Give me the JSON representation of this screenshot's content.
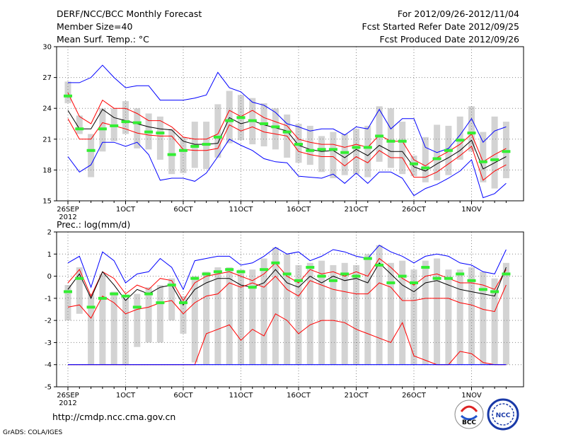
{
  "header": {
    "title": "DERF/NCC/BCC Monthly Forecast",
    "member_size": "Member Size=40",
    "variable1": "Mean Surf. Temp.: °C",
    "period": "For 2012/09/26-2012/11/04",
    "started": "Fcst Started Refer Date 2012/09/25",
    "produced": "Fcst Produced Date 2012/09/26"
  },
  "footer": {
    "url": "http://cmdp.ncc.cma.gov.cn",
    "credit": "GrADS: COLA/IGES",
    "logo_bcc": "BCC",
    "logo_ncc": "NCC"
  },
  "colors": {
    "max_min": "#0000ff",
    "percentile": "#ff0000",
    "mean": "#000000",
    "obs": "#33ee33",
    "box": "#d3d3d3",
    "grid": "#888888"
  },
  "chart_data": [
    {
      "type": "line",
      "title": "Mean Surf. Temp.: °C",
      "ylabel": "°C",
      "ylim": [
        15,
        30
      ],
      "yticks": [
        15,
        18,
        21,
        24,
        27,
        30
      ],
      "grid": true,
      "xtick_labels": [
        {
          "day": 0,
          "label": "26SEP",
          "sub": "2012"
        },
        {
          "day": 5,
          "label": "1OCT"
        },
        {
          "day": 10,
          "label": "6OCT"
        },
        {
          "day": 15,
          "label": "11OCT"
        },
        {
          "day": 20,
          "label": "16OCT"
        },
        {
          "day": 25,
          "label": "21OCT"
        },
        {
          "day": 30,
          "label": "26OCT"
        },
        {
          "day": 35,
          "label": "1NOV"
        }
      ],
      "days": [
        0,
        1,
        2,
        3,
        4,
        5,
        6,
        7,
        8,
        9,
        10,
        11,
        12,
        13,
        14,
        15,
        16,
        17,
        18,
        19,
        20,
        21,
        22,
        23,
        24,
        25,
        26,
        27,
        28,
        29,
        30,
        31,
        32,
        33,
        34,
        35,
        36,
        37,
        38
      ],
      "series": [
        {
          "name": "max",
          "values": [
            26.5,
            26.5,
            27.0,
            28.2,
            27.0,
            26.0,
            26.2,
            26.2,
            24.8,
            24.8,
            24.8,
            25.0,
            25.3,
            27.5,
            26.0,
            25.6,
            24.6,
            24.3,
            23.6,
            22.5,
            22.2,
            21.8,
            22.0,
            22.0,
            21.4,
            22.2,
            22.0,
            23.9,
            22.0,
            23.0,
            23.0,
            20.2,
            19.7,
            20.1,
            21.4,
            23.0,
            20.7,
            21.8,
            22.2
          ]
        },
        {
          "name": "p90",
          "values": [
            25.5,
            23.2,
            22.5,
            24.8,
            24.0,
            24.0,
            23.5,
            22.8,
            22.8,
            22.2,
            21.2,
            21.0,
            21.0,
            21.5,
            23.8,
            23.2,
            23.8,
            23.1,
            22.7,
            22.3,
            21.0,
            20.7,
            20.5,
            20.5,
            20.2,
            20.5,
            20.2,
            21.4,
            20.8,
            20.8,
            19.0,
            18.4,
            19.2,
            19.8,
            20.5,
            21.5,
            18.8,
            19.5,
            20.1
          ]
        },
        {
          "name": "mean",
          "values": [
            23.8,
            22.0,
            22.0,
            23.9,
            23.1,
            22.8,
            22.5,
            22.2,
            22.0,
            21.9,
            20.8,
            20.5,
            20.5,
            20.6,
            23.1,
            22.5,
            22.8,
            22.4,
            22.1,
            21.8,
            20.4,
            20.0,
            19.8,
            19.9,
            19.2,
            20.0,
            19.4,
            20.4,
            19.8,
            19.8,
            18.3,
            17.9,
            18.6,
            19.2,
            19.9,
            20.9,
            18.1,
            18.7,
            19.3
          ]
        },
        {
          "name": "p10",
          "values": [
            23.0,
            21.0,
            21.0,
            22.6,
            22.3,
            22.0,
            21.6,
            21.4,
            21.3,
            21.3,
            20.0,
            19.9,
            19.9,
            20.1,
            22.4,
            21.8,
            22.2,
            21.7,
            21.5,
            21.3,
            19.8,
            19.5,
            19.3,
            19.3,
            18.4,
            19.3,
            18.7,
            19.9,
            19.2,
            19.2,
            17.3,
            17.3,
            17.8,
            18.6,
            19.4,
            20.3,
            17.0,
            17.9,
            18.5
          ]
        },
        {
          "name": "min",
          "values": [
            19.3,
            17.8,
            18.5,
            20.7,
            20.7,
            20.3,
            20.7,
            19.5,
            17.0,
            17.2,
            17.2,
            16.9,
            17.7,
            19.3,
            21.0,
            20.4,
            19.9,
            19.1,
            18.8,
            18.7,
            17.4,
            17.3,
            17.2,
            17.6,
            16.7,
            17.7,
            16.7,
            17.8,
            17.8,
            17.2,
            15.5,
            16.2,
            16.6,
            17.2,
            17.9,
            19.0,
            15.3,
            15.7,
            16.7
          ]
        },
        {
          "name": "obs",
          "values": [
            25.2,
            22.0,
            19.9,
            22.0,
            22.3,
            22.7,
            22.6,
            21.7,
            21.6,
            19.5,
            19.9,
            20.3,
            20.5,
            21.2,
            22.8,
            23.1,
            22.8,
            22.5,
            22.2,
            21.7,
            20.5,
            19.9,
            20.0,
            20.0,
            19.7,
            20.2,
            20.2,
            21.3,
            20.8,
            20.8,
            18.6,
            18.2,
            19.1,
            19.9,
            20.9,
            21.6,
            18.8,
            19.0,
            19.8
          ]
        }
      ],
      "boxes": [
        [
          24.5,
          26.6
        ],
        [
          21.5,
          23.3
        ],
        [
          17.3,
          21.5
        ],
        [
          19.8,
          24.0
        ],
        [
          20.8,
          24.0
        ],
        [
          21.5,
          24.7
        ],
        [
          20.1,
          24.0
        ],
        [
          20.0,
          23.5
        ],
        [
          19.0,
          23.2
        ],
        [
          17.6,
          22.0
        ],
        [
          17.7,
          21.2
        ],
        [
          18.2,
          22.7
        ],
        [
          18.1,
          22.7
        ],
        [
          19.2,
          24.4
        ],
        [
          20.6,
          25.7
        ],
        [
          20.9,
          25.3
        ],
        [
          20.5,
          25.0
        ],
        [
          20.3,
          24.5
        ],
        [
          20.0,
          24.0
        ],
        [
          19.2,
          23.4
        ],
        [
          18.7,
          22.5
        ],
        [
          18.5,
          22.3
        ],
        [
          17.8,
          21.3
        ],
        [
          17.2,
          21.7
        ],
        [
          17.5,
          21.5
        ],
        [
          17.6,
          22.0
        ],
        [
          17.3,
          22.3
        ],
        [
          18.8,
          24.2
        ],
        [
          18.2,
          24.0
        ],
        [
          17.6,
          22.7
        ],
        [
          17.4,
          19.4
        ],
        [
          16.8,
          21.2
        ],
        [
          17.0,
          22.4
        ],
        [
          17.5,
          22.3
        ],
        [
          19.0,
          23.2
        ],
        [
          19.8,
          24.2
        ],
        [
          16.8,
          21.7
        ],
        [
          16.2,
          23.2
        ],
        [
          17.2,
          22.7
        ]
      ]
    },
    {
      "type": "line",
      "title": "Prec.: log(mm/d)",
      "ylabel": "log(mm/d)",
      "ylim": [
        -5,
        2
      ],
      "yticks": [
        -5,
        -4,
        -3,
        -2,
        -1,
        0,
        1,
        2
      ],
      "grid": true,
      "xtick_labels": [
        {
          "day": 0,
          "label": "26SEP",
          "sub": "2012"
        },
        {
          "day": 5,
          "label": "1OCT"
        },
        {
          "day": 10,
          "label": "6OCT"
        },
        {
          "day": 15,
          "label": "11OCT"
        },
        {
          "day": 20,
          "label": "16OCT"
        },
        {
          "day": 25,
          "label": "21OCT"
        },
        {
          "day": 30,
          "label": "26OCT"
        },
        {
          "day": 35,
          "label": "1NOV"
        }
      ],
      "days": [
        0,
        1,
        2,
        3,
        4,
        5,
        6,
        7,
        8,
        9,
        10,
        11,
        12,
        13,
        14,
        15,
        16,
        17,
        18,
        19,
        20,
        21,
        22,
        23,
        24,
        25,
        26,
        27,
        28,
        29,
        30,
        31,
        32,
        33,
        34,
        35,
        36,
        37,
        38
      ],
      "series": [
        {
          "name": "max",
          "values": [
            0.6,
            0.9,
            -0.5,
            1.1,
            0.7,
            -0.3,
            0.1,
            0.2,
            0.8,
            0.4,
            -0.6,
            0.7,
            0.8,
            0.9,
            0.9,
            0.5,
            0.6,
            0.9,
            1.3,
            1.0,
            1.1,
            0.7,
            0.9,
            1.2,
            1.1,
            0.9,
            0.8,
            1.4,
            1.1,
            0.9,
            0.6,
            0.9,
            1.0,
            0.9,
            0.6,
            0.5,
            0.2,
            0.1,
            1.2
          ]
        },
        {
          "name": "p90",
          "values": [
            -0.3,
            0.3,
            -0.9,
            0.2,
            -0.1,
            -0.8,
            -0.4,
            -0.6,
            -0.1,
            -0.2,
            -1.1,
            -0.3,
            0.0,
            0.1,
            0.2,
            0.0,
            -0.2,
            0.1,
            0.6,
            0.0,
            -0.3,
            0.3,
            0.1,
            0.2,
            0.0,
            0.2,
            0.0,
            0.8,
            0.4,
            -0.1,
            -0.4,
            0.0,
            0.1,
            -0.1,
            -0.3,
            -0.3,
            -0.4,
            -0.6,
            0.3
          ]
        },
        {
          "name": "mean",
          "values": [
            -0.6,
            0.1,
            -1.0,
            0.2,
            -0.4,
            -1.1,
            -0.6,
            -0.8,
            -0.5,
            -0.4,
            -1.3,
            -0.6,
            -0.3,
            -0.1,
            -0.1,
            -0.4,
            -0.5,
            -0.3,
            0.3,
            -0.3,
            -0.5,
            0.0,
            -0.3,
            0.0,
            -0.2,
            -0.1,
            -0.3,
            0.6,
            0.1,
            -0.4,
            -0.7,
            -0.3,
            -0.2,
            -0.4,
            -0.6,
            -0.7,
            -0.8,
            -0.9,
            0.4
          ]
        },
        {
          "name": "p10",
          "values": [
            -1.4,
            -1.3,
            -1.9,
            -0.9,
            -1.2,
            -1.7,
            -1.5,
            -1.4,
            -1.2,
            -1.1,
            -1.7,
            -1.2,
            -0.9,
            -0.8,
            -0.3,
            -0.5,
            -0.3,
            -0.5,
            0.0,
            -0.6,
            -0.9,
            -0.2,
            -0.4,
            -0.6,
            -0.7,
            -0.8,
            -0.8,
            -0.3,
            -0.5,
            -1.1,
            -1.1,
            -1.0,
            -1.0,
            -1.0,
            -1.2,
            -1.3,
            -1.5,
            -1.6,
            -0.4
          ]
        },
        {
          "name": "p10_low",
          "values": [
            -4,
            -4,
            -4,
            -4,
            -4,
            -4,
            -4,
            -4,
            -4,
            -4,
            -4,
            -4,
            -2.6,
            -2.4,
            -2.2,
            -2.9,
            -2.4,
            -2.7,
            -1.7,
            -2.0,
            -2.6,
            -2.2,
            -2.0,
            -2.0,
            -2.1,
            -2.4,
            -2.6,
            -2.8,
            -3.0,
            -2.1,
            -3.6,
            -3.8,
            -4.0,
            -4.0,
            -3.4,
            -3.5,
            -3.9,
            -4,
            -4
          ]
        },
        {
          "name": "min",
          "values": [
            -4,
            -4,
            -4,
            -4,
            -4,
            -4,
            -4,
            -4,
            -4,
            -4,
            -4,
            -4,
            -4,
            -4,
            -4,
            -4,
            -4,
            -4,
            -4,
            -4,
            -4,
            -4,
            -4,
            -4,
            -4,
            -4,
            -4,
            -4,
            -4,
            -4,
            -4,
            -4,
            -4,
            -4,
            -4,
            -4,
            -4,
            -4,
            -4
          ]
        },
        {
          "name": "obs",
          "values": [
            -0.7,
            -0.1,
            -1.4,
            -1.0,
            -0.8,
            -0.9,
            -1.4,
            -0.8,
            -1.2,
            -0.4,
            -1.2,
            -0.1,
            0.1,
            0.2,
            0.3,
            0.2,
            -0.5,
            0.3,
            0.6,
            0.1,
            -0.2,
            0.4,
            0.0,
            -0.2,
            0.1,
            0.0,
            0.8,
            0.5,
            -0.3,
            0.0,
            -0.3,
            0.4,
            -0.1,
            -0.1,
            0.1,
            -0.2,
            -0.6,
            -0.7,
            0.1
          ]
        }
      ],
      "boxes": [
        [
          -2.0,
          -0.4
        ],
        [
          -1.7,
          0.4
        ],
        [
          -4.0,
          -0.8
        ],
        [
          -4.0,
          0.1
        ],
        [
          -4.0,
          -0.7
        ],
        [
          -4.0,
          -1.0
        ],
        [
          -3.2,
          -0.8
        ],
        [
          -3.0,
          -0.5
        ],
        [
          -3.0,
          -0.4
        ],
        [
          -2.0,
          -0.1
        ],
        [
          -2.6,
          -0.9
        ],
        [
          -3.9,
          0.0
        ],
        [
          -4.0,
          0.2
        ],
        [
          -4.0,
          0.4
        ],
        [
          -4.0,
          0.4
        ],
        [
          -4.0,
          0.3
        ],
        [
          -4.0,
          0.3
        ],
        [
          -4.0,
          0.8
        ],
        [
          -4.0,
          1.3
        ],
        [
          -4.0,
          1.0
        ],
        [
          -4.0,
          0.5
        ],
        [
          -4.0,
          0.6
        ],
        [
          -4.0,
          0.7
        ],
        [
          -4.0,
          0.5
        ],
        [
          -4.0,
          0.6
        ],
        [
          -4.0,
          0.5
        ],
        [
          -4.0,
          1.0
        ],
        [
          -4.0,
          1.4
        ],
        [
          -4.0,
          0.6
        ],
        [
          -4.0,
          0.7
        ],
        [
          -4.0,
          0.3
        ],
        [
          -4.0,
          0.7
        ],
        [
          -4.0,
          0.8
        ],
        [
          -4.0,
          0.3
        ],
        [
          -4.0,
          0.3
        ],
        [
          -4.0,
          0.4
        ],
        [
          -4.0,
          0.2
        ],
        [
          -4.0,
          -0.1
        ],
        [
          -4.0,
          0.6
        ]
      ]
    }
  ]
}
